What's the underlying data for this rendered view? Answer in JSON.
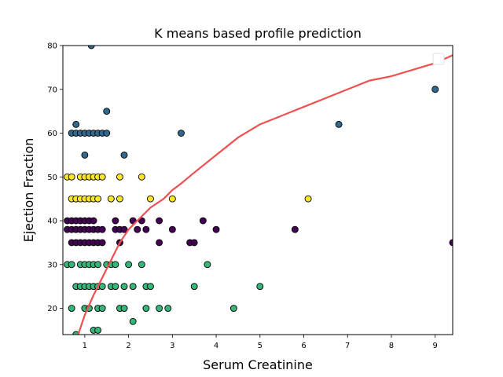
{
  "chart_data": {
    "type": "scatter",
    "title": "K means based profile prediction",
    "xlabel": "Serum Creatinine",
    "ylabel": "Ejection Fraction",
    "xlim": [
      0.5,
      9.4
    ],
    "ylim": [
      14,
      80
    ],
    "xticks": [
      1,
      2,
      3,
      4,
      5,
      6,
      7,
      8,
      9
    ],
    "yticks": [
      20,
      30,
      40,
      50,
      60,
      70,
      80
    ],
    "grid": false,
    "legend": "top-right (empty)",
    "colors": {
      "cluster_0": "#440154",
      "cluster_1": "#31688e",
      "cluster_2": "#35b779",
      "cluster_3": "#fde725",
      "boundary": "#f05050",
      "marker_edge": "#000000"
    },
    "series": [
      {
        "cluster": 0,
        "points": [
          [
            0.6,
            40
          ],
          [
            0.6,
            38
          ],
          [
            0.7,
            40
          ],
          [
            0.7,
            38
          ],
          [
            0.7,
            35
          ],
          [
            0.8,
            40
          ],
          [
            0.8,
            38
          ],
          [
            0.8,
            35
          ],
          [
            0.9,
            40
          ],
          [
            0.9,
            38
          ],
          [
            0.9,
            35
          ],
          [
            1.0,
            40
          ],
          [
            1.0,
            38
          ],
          [
            1.0,
            35
          ],
          [
            1.1,
            40
          ],
          [
            1.1,
            38
          ],
          [
            1.1,
            35
          ],
          [
            1.2,
            40
          ],
          [
            1.2,
            38
          ],
          [
            1.2,
            35
          ],
          [
            1.3,
            38
          ],
          [
            1.3,
            35
          ],
          [
            1.4,
            38
          ],
          [
            1.4,
            35
          ],
          [
            1.7,
            40
          ],
          [
            1.7,
            38
          ],
          [
            1.8,
            35
          ],
          [
            1.8,
            38
          ],
          [
            1.9,
            38
          ],
          [
            2.1,
            40
          ],
          [
            2.2,
            38
          ],
          [
            2.3,
            40
          ],
          [
            2.4,
            38
          ],
          [
            2.7,
            40
          ],
          [
            2.7,
            35
          ],
          [
            3.0,
            38
          ],
          [
            3.4,
            35
          ],
          [
            3.5,
            35
          ],
          [
            3.7,
            40
          ],
          [
            4.0,
            38
          ],
          [
            5.8,
            38
          ],
          [
            9.4,
            35
          ]
        ]
      },
      {
        "cluster": 1,
        "points": [
          [
            0.7,
            60
          ],
          [
            0.8,
            62
          ],
          [
            0.8,
            60
          ],
          [
            0.9,
            60
          ],
          [
            1.0,
            60
          ],
          [
            1.0,
            55
          ],
          [
            1.1,
            60
          ],
          [
            1.15,
            80
          ],
          [
            1.2,
            60
          ],
          [
            1.3,
            60
          ],
          [
            1.4,
            60
          ],
          [
            1.5,
            65
          ],
          [
            1.5,
            60
          ],
          [
            1.9,
            55
          ],
          [
            3.2,
            60
          ],
          [
            6.8,
            62
          ],
          [
            9.0,
            70
          ]
        ]
      },
      {
        "cluster": 2,
        "points": [
          [
            0.6,
            30
          ],
          [
            0.7,
            30
          ],
          [
            0.7,
            20
          ],
          [
            0.8,
            25
          ],
          [
            0.8,
            14
          ],
          [
            0.9,
            30
          ],
          [
            0.9,
            25
          ],
          [
            1.0,
            30
          ],
          [
            1.0,
            25
          ],
          [
            1.0,
            20
          ],
          [
            1.1,
            30
          ],
          [
            1.1,
            25
          ],
          [
            1.1,
            20
          ],
          [
            1.2,
            30
          ],
          [
            1.2,
            25
          ],
          [
            1.2,
            15
          ],
          [
            1.3,
            30
          ],
          [
            1.3,
            25
          ],
          [
            1.3,
            20
          ],
          [
            1.3,
            15
          ],
          [
            1.4,
            25
          ],
          [
            1.4,
            20
          ],
          [
            1.5,
            30
          ],
          [
            1.6,
            30
          ],
          [
            1.6,
            25
          ],
          [
            1.7,
            25
          ],
          [
            1.7,
            30
          ],
          [
            1.8,
            20
          ],
          [
            1.9,
            20
          ],
          [
            1.9,
            25
          ],
          [
            2.0,
            30
          ],
          [
            2.1,
            25
          ],
          [
            2.1,
            17
          ],
          [
            2.3,
            30
          ],
          [
            2.4,
            20
          ],
          [
            2.4,
            25
          ],
          [
            2.5,
            25
          ],
          [
            2.7,
            20
          ],
          [
            2.9,
            20
          ],
          [
            3.5,
            25
          ],
          [
            3.8,
            30
          ],
          [
            4.4,
            20
          ],
          [
            5.0,
            25
          ]
        ]
      },
      {
        "cluster": 3,
        "points": [
          [
            0.6,
            50
          ],
          [
            0.7,
            50
          ],
          [
            0.7,
            45
          ],
          [
            0.8,
            45
          ],
          [
            0.9,
            50
          ],
          [
            0.9,
            45
          ],
          [
            1.0,
            50
          ],
          [
            1.0,
            45
          ],
          [
            1.1,
            50
          ],
          [
            1.1,
            45
          ],
          [
            1.2,
            50
          ],
          [
            1.2,
            45
          ],
          [
            1.3,
            50
          ],
          [
            1.3,
            45
          ],
          [
            1.4,
            50
          ],
          [
            1.6,
            45
          ],
          [
            1.8,
            50
          ],
          [
            1.8,
            45
          ],
          [
            2.3,
            50
          ],
          [
            2.5,
            45
          ],
          [
            3.0,
            45
          ],
          [
            6.1,
            45
          ]
        ]
      }
    ],
    "boundary_line": {
      "x": [
        0.85,
        1.0,
        1.2,
        1.4,
        1.6,
        1.8,
        2.0,
        2.2,
        2.5,
        2.8,
        3.0,
        3.2,
        3.5,
        4.0,
        4.5,
        5.0,
        5.5,
        6.0,
        6.5,
        7.0,
        7.5,
        8.0,
        8.5,
        9.0,
        9.4
      ],
      "y": [
        14,
        18.5,
        23,
        27,
        31,
        35,
        38,
        40,
        43,
        45,
        47,
        48.5,
        51,
        55,
        59,
        62,
        64,
        66,
        68,
        70,
        72,
        73,
        74.5,
        76,
        77.8
      ]
    }
  }
}
